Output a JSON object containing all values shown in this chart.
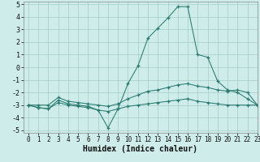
{
  "x": [
    0,
    1,
    2,
    3,
    4,
    5,
    6,
    7,
    8,
    9,
    10,
    11,
    12,
    13,
    14,
    15,
    16,
    17,
    18,
    19,
    20,
    21,
    22,
    23
  ],
  "line_spike": [
    -3.0,
    -3.2,
    -3.3,
    -2.6,
    -2.9,
    -3.0,
    -3.1,
    -3.4,
    -4.8,
    -3.3,
    -1.3,
    0.1,
    2.3,
    3.1,
    3.9,
    4.8,
    4.8,
    1.0,
    0.8,
    -1.1,
    -1.8,
    -2.0,
    -2.5,
    -3.0
  ],
  "line_upper": [
    -3.0,
    -3.0,
    -3.0,
    -2.4,
    -2.7,
    -2.8,
    -2.9,
    -3.0,
    -3.1,
    -2.9,
    -2.5,
    -2.2,
    -1.9,
    -1.8,
    -1.6,
    -1.4,
    -1.3,
    -1.5,
    -1.6,
    -1.8,
    -1.9,
    -1.8,
    -2.0,
    -3.0
  ],
  "line_lower": [
    -3.0,
    -3.2,
    -3.3,
    -2.8,
    -3.0,
    -3.1,
    -3.2,
    -3.4,
    -3.5,
    -3.3,
    -3.1,
    -3.0,
    -2.9,
    -2.8,
    -2.7,
    -2.6,
    -2.5,
    -2.7,
    -2.8,
    -2.9,
    -3.0,
    -3.0,
    -3.0,
    -3.0
  ],
  "color": "#2a7a70",
  "bgcolor": "#ceecea",
  "xlim": [
    -0.5,
    23
  ],
  "ylim": [
    -5.2,
    5.2
  ],
  "xlabel": "Humidex (Indice chaleur)",
  "xticks": [
    0,
    1,
    2,
    3,
    4,
    5,
    6,
    7,
    8,
    9,
    10,
    11,
    12,
    13,
    14,
    15,
    16,
    17,
    18,
    19,
    20,
    21,
    22,
    23
  ],
  "yticks": [
    -5,
    -4,
    -3,
    -2,
    -1,
    0,
    1,
    2,
    3,
    4,
    5
  ],
  "grid_color": "#a8ccc8",
  "tick_fontsize": 5.5,
  "xlabel_fontsize": 7.0
}
